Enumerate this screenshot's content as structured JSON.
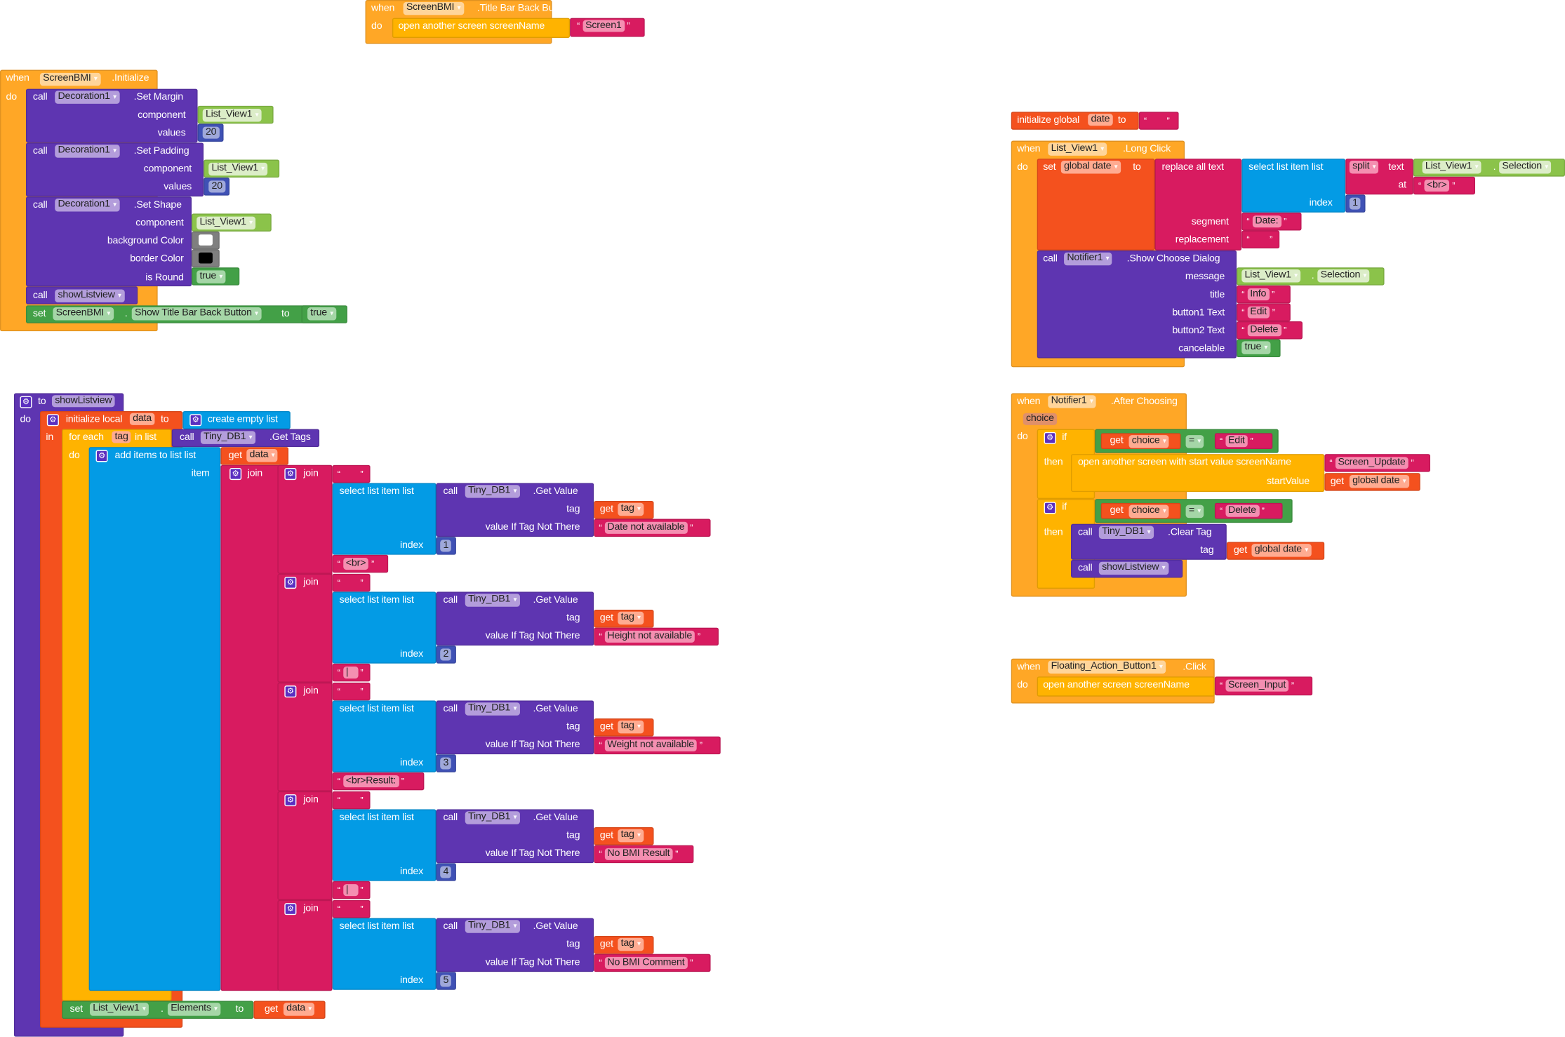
{
  "colors": {
    "event": "#FFA726",
    "control": "#FFB300",
    "component": "#5E35B1",
    "getter": "#8BC34A",
    "text": "#D81B60",
    "math": "#3F51B5",
    "logic": "#43A047",
    "variable": "#F4511E",
    "list": "#039BE5",
    "color": "#7F7F7F",
    "eventPill": "#FFD59A",
    "componentPill": "#B39DDB",
    "getterPill": "#DCEDC8",
    "textPill": "#F48FB1",
    "mathPill": "#9FA8DA",
    "logicPill": "#A5D6A7",
    "variablePill": "#FFAB91",
    "paramPill": "#E0906A"
  },
  "b1": {
    "when": "when",
    "component": "ScreenBMI",
    "event": ".Title Bar Back Button Clicked",
    "do": "do",
    "action": "open another screen  screenName",
    "screen": "Screen1"
  },
  "b2": {
    "when": "when",
    "component": "ScreenBMI",
    "event": ".Initialize",
    "do": "do",
    "margin": {
      "call": "call",
      "component": "Decoration1",
      "method": ".Set Margin",
      "arg1": "component",
      "arg1_value": "List_View1",
      "arg2": "values",
      "arg2_value": "20"
    },
    "padding": {
      "call": "call",
      "component": "Decoration1",
      "method": ".Set Padding",
      "arg1": "component",
      "arg1_value": "List_View1",
      "arg2": "values",
      "arg2_value": "20"
    },
    "shape": {
      "call": "call",
      "component": "Decoration1",
      "method": ".Set Shape",
      "arg1": "component",
      "arg1_value": "List_View1",
      "arg2": "background Color",
      "arg3": "border Color",
      "arg4": "is Round",
      "arg4_value": "true",
      "background_color": "#FFFFFF",
      "border_color": "#000000"
    },
    "show": {
      "call": "call",
      "procedure": "showListview"
    },
    "set": {
      "set": "set",
      "component": "ScreenBMI",
      "dot": ".",
      "property": "Show Title Bar Back Button",
      "to": "to",
      "value": "true"
    }
  },
  "b3": {
    "to": "to",
    "name": "showListview",
    "do": "do",
    "init": {
      "label": "initialize local",
      "var": "data",
      "to": "to",
      "in": "in",
      "value": "create empty list"
    },
    "foreach": {
      "label": "for each",
      "var": "tag",
      "in_list": "in list",
      "call": "call",
      "component": "Tiny_DB1",
      "method": ".Get Tags",
      "do": "do"
    },
    "add": {
      "label": "add items to list  list",
      "get": "get",
      "var": "data",
      "item": "item"
    },
    "join": "join",
    "empty": "",
    "rows": [
      {
        "select": "select list item  list",
        "call": "call",
        "component": "Tiny_DB1",
        "method": ".Get Value",
        "tag_label": "tag",
        "get": "get",
        "tag_var": "tag",
        "notthere_label": "value If Tag Not There",
        "notthere": "Date not available",
        "index_label": "index",
        "index": "1",
        "sep": "<br>"
      },
      {
        "select": "select list item  list",
        "call": "call",
        "component": "Tiny_DB1",
        "method": ".Get Value",
        "tag_label": "tag",
        "get": "get",
        "tag_var": "tag",
        "notthere_label": "value If Tag Not There",
        "notthere": "Height not available",
        "index_label": "index",
        "index": "2",
        "sep": "|"
      },
      {
        "select": "select list item  list",
        "call": "call",
        "component": "Tiny_DB1",
        "method": ".Get Value",
        "tag_label": "tag",
        "get": "get",
        "tag_var": "tag",
        "notthere_label": "value If Tag Not There",
        "notthere": "Weight not available",
        "index_label": "index",
        "index": "3",
        "sep": "<br>Result:"
      },
      {
        "select": "select list item  list",
        "call": "call",
        "component": "Tiny_DB1",
        "method": ".Get Value",
        "tag_label": "tag",
        "get": "get",
        "tag_var": "tag",
        "notthere_label": "value If Tag Not There",
        "notthere": "No BMI Result",
        "index_label": "index",
        "index": "4",
        "sep": "|"
      },
      {
        "select": "select list item  list",
        "call": "call",
        "component": "Tiny_DB1",
        "method": ".Get Value",
        "tag_label": "tag",
        "get": "get",
        "tag_var": "tag",
        "notthere_label": "value If Tag Not There",
        "notthere": "No BMI Comment",
        "index_label": "index",
        "index": "5"
      }
    ],
    "set": {
      "set": "set",
      "component": "List_View1",
      "dot": ".",
      "property": "Elements",
      "to": "to",
      "get": "get",
      "var": "data"
    }
  },
  "b4": {
    "label": "initialize global",
    "var": "date",
    "to": "to",
    "value": ""
  },
  "b5": {
    "when": "when",
    "component": "List_View1",
    "event": ".Long Click",
    "do": "do",
    "set": {
      "set": "set",
      "var": "global date",
      "to": "to"
    },
    "replace": {
      "label": "replace all text",
      "segment": "segment",
      "segment_value": "Date:",
      "replacement": "replacement",
      "replacement_value": ""
    },
    "select": {
      "label": "select list item  list",
      "index": "index",
      "index_value": "1"
    },
    "split": {
      "op": "split",
      "text": "text",
      "at": "at",
      "at_value": "<br>",
      "component": "List_View1",
      "dot": ".",
      "property": "Selection"
    },
    "notify": {
      "call": "call",
      "component": "Notifier1",
      "method": ".Show Choose Dialog",
      "message": "message",
      "message_component": "List_View1",
      "dot": ".",
      "message_property": "Selection",
      "title": "title",
      "title_value": "Info",
      "button1": "button1 Text",
      "button1_value": "Edit",
      "button2": "button2 Text",
      "button2_value": "Delete",
      "cancelable": "cancelable",
      "cancelable_value": "true"
    }
  },
  "b6": {
    "when": "when",
    "component": "Notifier1",
    "event": ".After Choosing",
    "param": "choice",
    "do": "do",
    "if1": {
      "if": "if",
      "then": "then",
      "get": "get",
      "var": "choice",
      "op": "=",
      "value": "Edit",
      "action": "open another screen with start value  screenName",
      "screen": "Screen_Update",
      "start_label": "startValue",
      "start_get": "get",
      "start_var": "global date"
    },
    "if2": {
      "if": "if",
      "then": "then",
      "get": "get",
      "var": "choice",
      "op": "=",
      "value": "Delete",
      "call": "call",
      "component": "Tiny_DB1",
      "method": ".Clear Tag",
      "tag_label": "tag",
      "tag_get": "get",
      "tag_var": "global date",
      "call2": "call",
      "procedure": "showListview"
    }
  },
  "b7": {
    "when": "when",
    "component": "Floating_Action_Button1",
    "event": ".Click",
    "do": "do",
    "action": "open another screen  screenName",
    "screen": "Screen_Input"
  }
}
